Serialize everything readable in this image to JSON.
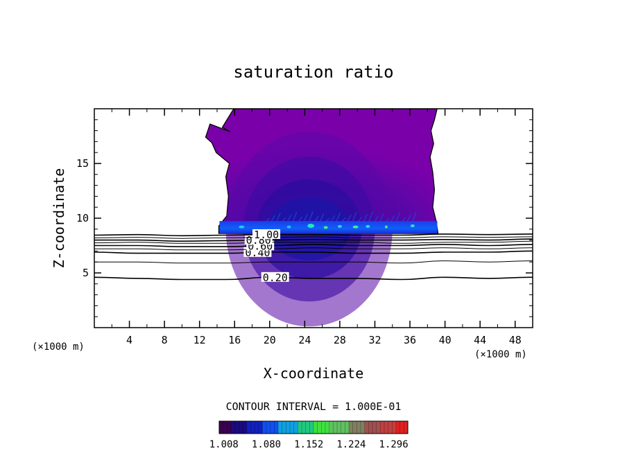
{
  "chart_data": {
    "type": "contour",
    "title": "saturation ratio",
    "xlabel": "X-coordinate",
    "ylabel": "Z-coordinate",
    "x_unit": "(×1000 m)",
    "y_unit": "(×1000 m)",
    "xlim": [
      0,
      50
    ],
    "ylim": [
      0,
      20
    ],
    "x_ticks": [
      4,
      8,
      12,
      16,
      20,
      24,
      28,
      32,
      36,
      40,
      44,
      48
    ],
    "y_ticks": [
      5,
      10,
      15
    ],
    "contour_interval_text": "CONTOUR INTERVAL = 1.000E-01",
    "contour_lines": [
      {
        "level": 0.2,
        "label": "0.20",
        "label_x": 19.2,
        "z": [
          4.6,
          4.5,
          4.4,
          4.4,
          4.6,
          4.5,
          4.5,
          4.4,
          4.6,
          4.5,
          4.6
        ]
      },
      {
        "level": 0.3,
        "z": [
          6.0,
          6.0,
          5.9,
          5.9,
          6.0,
          6.0,
          6.0,
          5.9,
          6.1,
          6.0,
          6.1
        ]
      },
      {
        "level": 0.4,
        "label": "0.40",
        "label_x": 17.2,
        "z": [
          6.9,
          6.8,
          6.8,
          6.8,
          6.9,
          6.9,
          6.8,
          6.8,
          6.9,
          6.9,
          7.0
        ]
      },
      {
        "level": 0.5,
        "z": [
          7.2,
          7.2,
          7.1,
          7.1,
          7.2,
          7.3,
          7.2,
          7.2,
          7.3,
          7.2,
          7.3
        ]
      },
      {
        "level": 0.6,
        "label": "0.60",
        "label_x": 17.5,
        "z": [
          7.5,
          7.5,
          7.4,
          7.4,
          7.5,
          7.6,
          7.5,
          7.5,
          7.6,
          7.5,
          7.6
        ]
      },
      {
        "level": 0.7,
        "z": [
          7.75,
          7.8,
          7.7,
          7.7,
          7.8,
          7.8,
          7.8,
          7.7,
          7.8,
          7.8,
          7.9
        ]
      },
      {
        "level": 0.8,
        "label": "0.80",
        "label_x": 17.3,
        "z": [
          8.0,
          8.0,
          7.9,
          7.95,
          8.0,
          8.05,
          8.0,
          8.0,
          8.05,
          8.0,
          8.1
        ]
      },
      {
        "level": 0.9,
        "z": [
          8.2,
          8.25,
          8.15,
          8.2,
          8.25,
          8.3,
          8.2,
          8.2,
          8.3,
          8.25,
          8.3
        ]
      },
      {
        "level": 1.0,
        "label": "1.00",
        "label_x": 18.2,
        "z": [
          8.45,
          8.5,
          8.4,
          8.45,
          8.5,
          8.5,
          8.45,
          8.45,
          8.55,
          8.5,
          8.55
        ]
      }
    ],
    "supersaturated_region": {
      "x_range": [
        14.2,
        39.2
      ],
      "z_range": [
        8.6,
        19.8
      ],
      "core_x": 24.5,
      "core_z": 9.0
    },
    "colorbar": {
      "labels": [
        "1.008",
        "1.080",
        "1.152",
        "1.224",
        "1.296"
      ],
      "values": [
        1.008,
        1.08,
        1.152,
        1.224,
        1.296
      ],
      "range": [
        1.0,
        1.32
      ],
      "colors": [
        "#3a0050",
        "#1c0a80",
        "#1020c0",
        "#1050f0",
        "#10a0e0",
        "#20c880",
        "#40e040",
        "#60c060",
        "#808060",
        "#a05050",
        "#c04040",
        "#e02020"
      ]
    }
  }
}
